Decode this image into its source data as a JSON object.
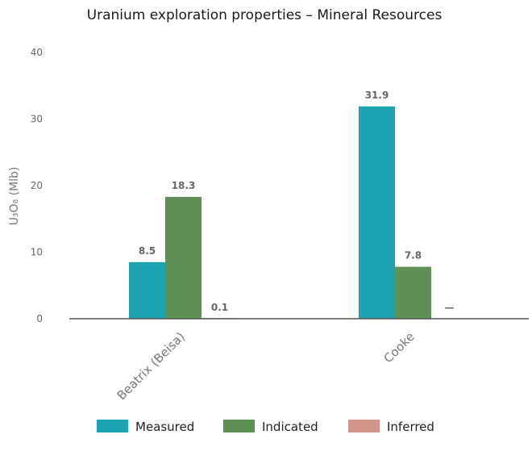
{
  "chart_data": {
    "type": "bar",
    "title": "Uranium exploration properties – Mineral Resources",
    "ylabel": "U₃O₈ (Mlb)",
    "xlabel": "",
    "ylim": [
      0,
      40
    ],
    "yticks": [
      "0",
      "10",
      "20",
      "30",
      "40"
    ],
    "grid": false,
    "legend_position": "bottom",
    "categories": [
      "Beatrix (Beisa)",
      "Cooke"
    ],
    "series": [
      {
        "name": "Measured",
        "color": "#1ea4b0",
        "values": [
          8.5,
          31.9
        ],
        "labels": [
          "8.5",
          "31.9"
        ]
      },
      {
        "name": "Indicated",
        "color": "#5f9157",
        "values": [
          18.3,
          7.8
        ],
        "labels": [
          "18.3",
          "7.8"
        ]
      },
      {
        "name": "Inferred",
        "color": "#d1968b",
        "values": [
          0.1,
          null
        ],
        "labels": [
          "0.1",
          "—"
        ]
      }
    ]
  }
}
